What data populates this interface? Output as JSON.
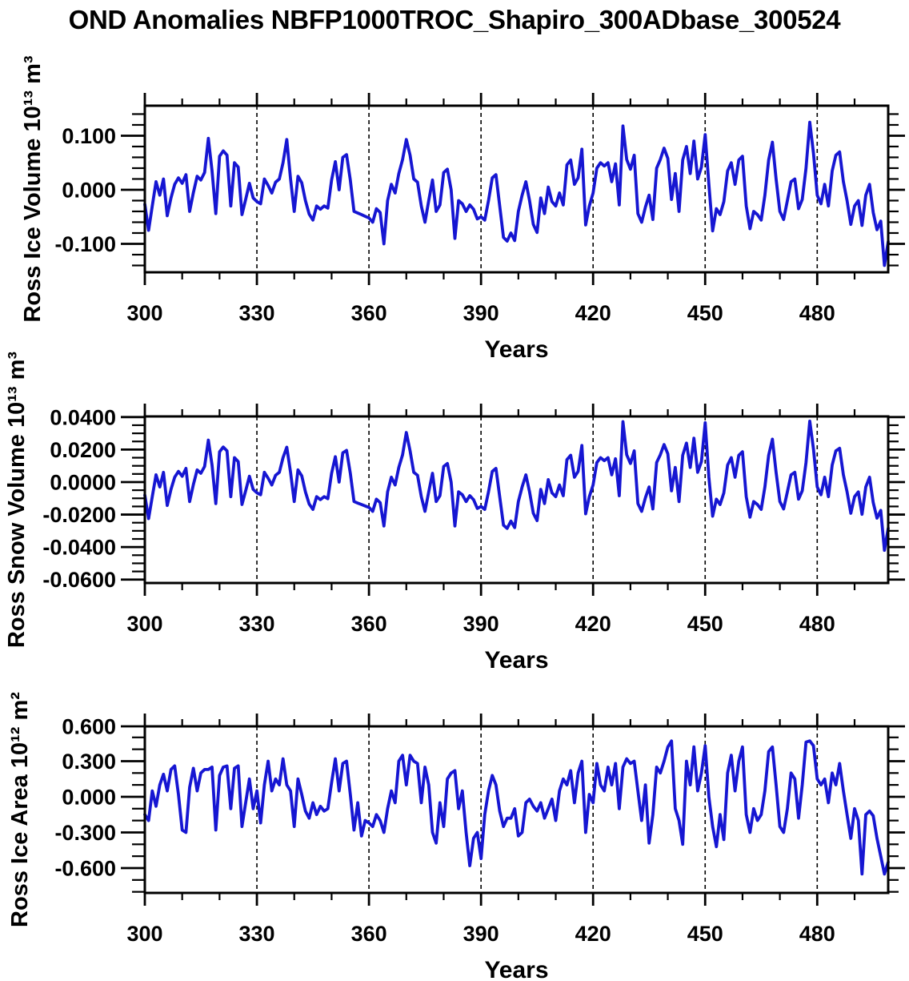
{
  "title": "OND Anomalies NBFP1000TROC_Shapiro_300ADbase_300524",
  "figure": {
    "background": "#ffffff",
    "line_color": "#1616d2",
    "frame_color": "#000000"
  },
  "chart_data": [
    {
      "type": "line",
      "name": "ross-ice-volume",
      "ylabel": "Ross Ice Volume 10¹³ m³",
      "xlabel": "Years",
      "x_start": 300,
      "x_step": 1,
      "xlim": [
        300,
        499
      ],
      "ylim": [
        -0.1526,
        0.1555
      ],
      "xticks_major": [
        300,
        330,
        360,
        390,
        420,
        450,
        480
      ],
      "xtick_labels": [
        "300",
        "330",
        "360",
        "390",
        "420",
        "450",
        "480"
      ],
      "xticks_minor_step": 10,
      "yticks_major": [
        0.1,
        0.0,
        -0.1
      ],
      "ytick_labels": [
        "0.100",
        "0.000",
        "-0.100"
      ],
      "yticks_minor_step": 0.02,
      "gridlines_x": [
        330,
        360,
        390,
        420,
        450,
        480
      ],
      "grid_style": "dashed",
      "line_color": "#1616d2",
      "values": [
        -0.027,
        -0.075,
        -0.03,
        0.015,
        -0.01,
        0.02,
        -0.048,
        -0.015,
        0.01,
        0.022,
        0.012,
        0.028,
        -0.04,
        -0.005,
        0.025,
        0.018,
        0.032,
        0.095,
        0.035,
        -0.044,
        0.062,
        0.072,
        0.064,
        -0.03,
        0.05,
        0.042,
        -0.046,
        -0.018,
        0.012,
        -0.015,
        -0.022,
        -0.026,
        0.02,
        0.008,
        -0.006,
        0.014,
        0.02,
        0.05,
        0.093,
        0.02,
        -0.04,
        0.025,
        0.013,
        -0.02,
        -0.045,
        -0.056,
        -0.03,
        -0.036,
        -0.03,
        -0.034,
        0.018,
        0.052,
        0,
        0.06,
        0.065,
        0.018,
        -0.04,
        -0.043,
        -0.046,
        -0.049,
        -0.052,
        -0.06,
        -0.035,
        -0.042,
        -0.1,
        -0.02,
        0.01,
        -0.006,
        0.03,
        0.056,
        0.093,
        0.064,
        0.02,
        0.014,
        -0.03,
        -0.06,
        -0.02,
        0.018,
        -0.04,
        -0.028,
        0.032,
        0.038,
        0,
        -0.09,
        -0.02,
        -0.026,
        -0.04,
        -0.028,
        -0.036,
        -0.054,
        -0.05,
        -0.056,
        -0.02,
        0.022,
        0.028,
        -0.03,
        -0.088,
        -0.095,
        -0.08,
        -0.094,
        -0.04,
        -0.01,
        0.015,
        -0.02,
        -0.064,
        -0.079,
        -0.015,
        -0.044,
        0.005,
        -0.022,
        -0.03,
        -0.006,
        -0.028,
        0.046,
        0.055,
        0.01,
        0.022,
        0.075,
        -0.065,
        -0.03,
        -0.006,
        0.04,
        0.05,
        0.044,
        0.05,
        0.015,
        0.048,
        -0.028,
        0.118,
        0.056,
        0.038,
        0.064,
        -0.044,
        -0.06,
        -0.032,
        -0.01,
        -0.055,
        0.04,
        0.056,
        0.077,
        0.058,
        -0.018,
        0.03,
        -0.04,
        0.055,
        0.08,
        0.03,
        0.09,
        0.02,
        0.042,
        0.102,
        0.01,
        -0.076,
        -0.035,
        -0.046,
        -0.022,
        0.035,
        0.05,
        0.01,
        0.055,
        0.062,
        -0.03,
        -0.072,
        -0.04,
        -0.046,
        -0.056,
        -0.01,
        0.055,
        0.088,
        0.02,
        -0.04,
        -0.055,
        -0.02,
        0.015,
        0.02,
        -0.035,
        -0.018,
        0.04,
        0.125,
        0.068,
        -0.01,
        -0.026,
        0.01,
        -0.03,
        0.035,
        0.064,
        0.07,
        0.015,
        -0.02,
        -0.064,
        -0.03,
        -0.02,
        -0.066,
        -0.01,
        0.01,
        -0.042,
        -0.074,
        -0.058,
        -0.14,
        -0.096
      ]
    },
    {
      "type": "line",
      "name": "ross-snow-volume",
      "ylabel": "Ross Snow Volume 10¹³ m³",
      "xlabel": "Years",
      "x_start": 300,
      "x_step": 1,
      "xlim": [
        300,
        499
      ],
      "ylim": [
        -0.0621,
        0.0404
      ],
      "xticks_major": [
        300,
        330,
        360,
        390,
        420,
        450,
        480
      ],
      "xtick_labels": [
        "300",
        "330",
        "360",
        "390",
        "420",
        "450",
        "480"
      ],
      "xticks_minor_step": 10,
      "yticks_major": [
        0.04,
        0.02,
        0.0,
        -0.02,
        -0.04,
        -0.06
      ],
      "ytick_labels": [
        "0.0400",
        "0.0200",
        "0.0000",
        "-0.0200",
        "-0.0400",
        "-0.0600"
      ],
      "yticks_minor_step": 0.005,
      "gridlines_x": [
        330,
        360,
        390,
        420,
        450,
        480
      ],
      "grid_style": "dashed",
      "line_color": "#1616d2",
      "values": [
        -0.0081,
        -0.0225,
        -0.009,
        0.0045,
        -0.003,
        0.006,
        -0.0144,
        -0.0045,
        0.003,
        0.0066,
        0.0036,
        0.0084,
        -0.012,
        -0.0015,
        0.0075,
        0.0054,
        0.0096,
        0.0258,
        0.0105,
        -0.0132,
        0.0186,
        0.0216,
        0.0192,
        -0.009,
        0.015,
        0.0126,
        -0.0138,
        -0.0054,
        0.0036,
        -0.0045,
        -0.0066,
        -0.0078,
        0.006,
        0.0024,
        -0.0018,
        0.0042,
        0.006,
        0.015,
        0.0215,
        0.006,
        -0.012,
        0.0075,
        0.0039,
        -0.006,
        -0.0135,
        -0.0168,
        -0.009,
        -0.0108,
        -0.009,
        -0.0102,
        0.0054,
        0.0156,
        0,
        0.018,
        0.0195,
        0.0054,
        -0.012,
        -0.0129,
        -0.0138,
        -0.0147,
        -0.0156,
        -0.018,
        -0.0105,
        -0.0126,
        -0.027,
        -0.006,
        0.003,
        -0.0018,
        0.009,
        0.0168,
        0.0305,
        0.0192,
        0.006,
        0.0042,
        -0.009,
        -0.018,
        -0.006,
        0.0054,
        -0.012,
        -0.0084,
        0.0096,
        0.0114,
        0,
        -0.027,
        -0.006,
        -0.0078,
        -0.012,
        -0.0084,
        -0.0108,
        -0.0162,
        -0.015,
        -0.0168,
        -0.006,
        0.0066,
        0.0084,
        -0.009,
        -0.0265,
        -0.0285,
        -0.024,
        -0.028,
        -0.012,
        -0.003,
        0.0045,
        -0.006,
        -0.0192,
        -0.0237,
        -0.0045,
        -0.0132,
        0.0015,
        -0.0066,
        -0.009,
        -0.0018,
        -0.0084,
        0.0138,
        0.0165,
        0.003,
        0.0066,
        0.0225,
        -0.0195,
        -0.009,
        -0.0018,
        0.012,
        0.015,
        0.0132,
        0.015,
        0.0045,
        0.0144,
        -0.0084,
        0.0372,
        0.0168,
        0.0114,
        0.0192,
        -0.0132,
        -0.018,
        -0.0096,
        -0.003,
        -0.0165,
        0.012,
        0.0168,
        0.0231,
        0.0174,
        -0.0054,
        0.009,
        -0.012,
        0.0165,
        0.024,
        0.009,
        0.027,
        0.006,
        0.0126,
        0.0365,
        0.003,
        -0.021,
        -0.0105,
        -0.0138,
        -0.0066,
        0.0105,
        0.015,
        0.003,
        0.0165,
        0.0186,
        -0.009,
        -0.0216,
        -0.012,
        -0.0138,
        -0.0168,
        -0.003,
        0.0165,
        0.0264,
        0.006,
        -0.012,
        -0.0165,
        -0.006,
        0.0045,
        0.006,
        -0.0105,
        -0.0054,
        0.012,
        0.0375,
        0.0204,
        -0.003,
        -0.0078,
        0.003,
        -0.009,
        0.0105,
        0.0192,
        0.0208,
        0.0045,
        -0.006,
        -0.0192,
        -0.009,
        -0.006,
        -0.0198,
        -0.003,
        0.003,
        -0.0126,
        -0.0222,
        -0.0174,
        -0.042,
        -0.0285
      ]
    },
    {
      "type": "line",
      "name": "ross-ice-area",
      "ylabel": "Ross Ice Area 10¹² m²",
      "xlabel": "Years",
      "x_start": 300,
      "x_step": 1,
      "xlim": [
        300,
        499
      ],
      "ylim": [
        -0.809,
        0.593
      ],
      "xticks_major": [
        300,
        330,
        360,
        390,
        420,
        450,
        480
      ],
      "xtick_labels": [
        "300",
        "330",
        "360",
        "390",
        "420",
        "450",
        "480"
      ],
      "xticks_minor_step": 10,
      "yticks_major": [
        0.6,
        0.3,
        0.0,
        -0.3,
        -0.6
      ],
      "ytick_labels": [
        "0.600",
        "0.300",
        "0.000",
        "-0.300",
        "-0.600"
      ],
      "yticks_minor_step": 0.1,
      "gridlines_x": [
        330,
        360,
        390,
        420,
        450,
        480
      ],
      "grid_style": "dashed",
      "line_color": "#1616d2",
      "values": [
        -0.15,
        -0.2,
        0.05,
        -0.08,
        0.1,
        0.19,
        0.05,
        0.23,
        0.26,
        0.02,
        -0.28,
        -0.3,
        0.08,
        0.24,
        0.05,
        0.2,
        0.23,
        0.23,
        0.25,
        -0.28,
        0.18,
        0.25,
        0.26,
        -0.1,
        0.24,
        0.26,
        -0.25,
        -0.05,
        0.15,
        -0.1,
        0.05,
        -0.22,
        0.1,
        0.3,
        0.05,
        0.15,
        0.1,
        0.32,
        0.1,
        0.05,
        -0.25,
        0.15,
        0.02,
        -0.12,
        -0.18,
        -0.05,
        -0.15,
        -0.08,
        -0.12,
        -0.1,
        0.12,
        0.32,
        0.05,
        0.28,
        0.3,
        0.02,
        -0.28,
        -0.05,
        -0.33,
        -0.2,
        -0.22,
        -0.25,
        -0.15,
        -0.2,
        -0.3,
        -0.1,
        0.05,
        -0.05,
        0.3,
        0.35,
        0.1,
        0.35,
        0.3,
        0.28,
        -0.05,
        0.25,
        0.1,
        -0.3,
        -0.39,
        -0.05,
        -0.25,
        0.15,
        0.2,
        0.22,
        -0.1,
        0.05,
        -0.3,
        -0.58,
        -0.35,
        -0.3,
        -0.52,
        -0.15,
        0.05,
        0.18,
        0.1,
        -0.12,
        -0.25,
        -0.18,
        -0.18,
        -0.1,
        -0.33,
        -0.3,
        -0.05,
        -0.02,
        -0.08,
        -0.12,
        -0.05,
        -0.18,
        -0.1,
        -0.02,
        -0.2,
        0.05,
        0.15,
        0.1,
        0.22,
        -0.05,
        0.2,
        0.3,
        -0.3,
        0.02,
        -0.05,
        0.28,
        0.1,
        0.05,
        0.25,
        0.1,
        0.28,
        -0.1,
        0.25,
        0.32,
        0.28,
        0.3,
        0.05,
        -0.2,
        0.1,
        -0.39,
        -0.15,
        0.25,
        0.2,
        0.3,
        0.42,
        0.47,
        -0.1,
        -0.2,
        -0.4,
        0.3,
        0.1,
        0.42,
        0.05,
        0.2,
        0.43,
        0,
        -0.25,
        -0.42,
        -0.15,
        -0.36,
        0.2,
        0.35,
        0.05,
        0.3,
        0.42,
        -0.15,
        -0.3,
        -0.1,
        -0.2,
        -0.15,
        0.05,
        0.38,
        0.42,
        0.1,
        -0.25,
        -0.3,
        -0.1,
        0.2,
        0.15,
        -0.18,
        0.1,
        0.46,
        0.47,
        0.43,
        0.15,
        0.1,
        0.15,
        -0.05,
        0.2,
        0.1,
        0.28,
        0.05,
        -0.15,
        -0.35,
        -0.1,
        -0.2,
        -0.65,
        -0.15,
        -0.12,
        -0.16,
        -0.35,
        -0.5,
        -0.65,
        -0.55
      ]
    }
  ]
}
